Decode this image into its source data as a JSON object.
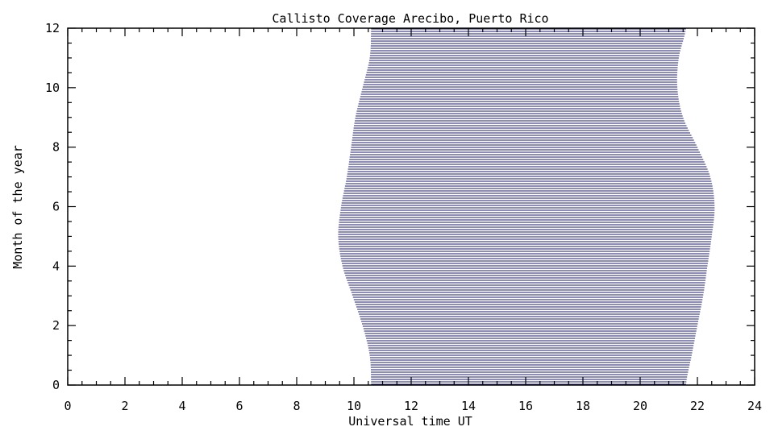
{
  "chart_data": {
    "type": "area",
    "title": "Callisto Coverage Arecibo, Puerto Rico",
    "xlabel": "Universal time UT",
    "ylabel": "Month of the year",
    "xlim": [
      0,
      24
    ],
    "ylim": [
      0,
      12
    ],
    "x_ticks": [
      0,
      2,
      4,
      6,
      8,
      10,
      12,
      14,
      16,
      18,
      20,
      22,
      24
    ],
    "y_ticks": [
      0,
      2,
      4,
      6,
      8,
      10,
      12
    ],
    "grid": false,
    "colors": {
      "fill_lines": "#1a1a6e",
      "axes": "#000000"
    },
    "series": [
      {
        "month": [
          0,
          1,
          2,
          3,
          4,
          5,
          6,
          7,
          8,
          9,
          10,
          11,
          12
        ],
        "start_ut": [
          10.6,
          10.55,
          10.3,
          9.95,
          9.6,
          9.45,
          9.55,
          9.75,
          9.9,
          10.05,
          10.3,
          10.55,
          10.6
        ],
        "end_ut": [
          21.6,
          21.8,
          22.0,
          22.2,
          22.35,
          22.5,
          22.6,
          22.45,
          22.0,
          21.5,
          21.3,
          21.35,
          21.6
        ]
      }
    ]
  }
}
